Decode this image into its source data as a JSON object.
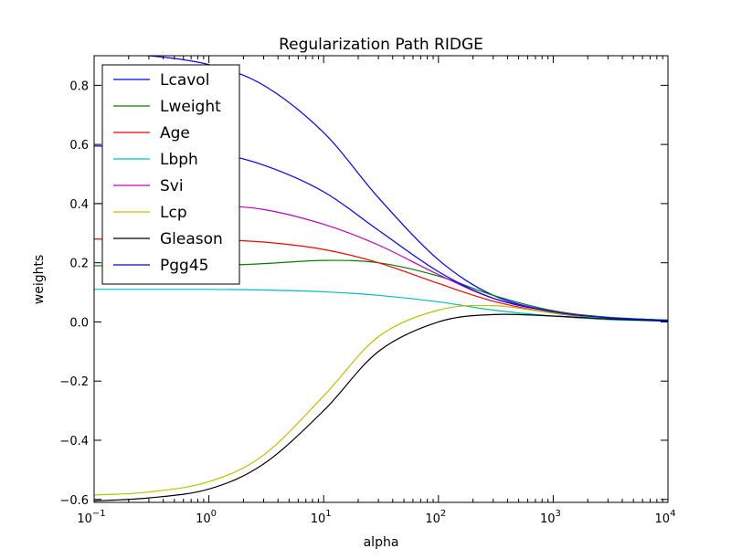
{
  "chart_data": {
    "type": "line",
    "title": "Regularization Path RIDGE",
    "xlabel": "alpha",
    "ylabel": "weights",
    "xscale": "log",
    "xlim": [
      0.1,
      10000
    ],
    "ylim": [
      -0.61,
      0.9
    ],
    "grid": false,
    "legend_position": "top-left",
    "x": [
      0.1,
      0.3,
      1,
      3,
      10,
      30,
      100,
      300,
      1000,
      3000,
      10000
    ],
    "x_tick_labels": [
      "10^-1",
      "10^0",
      "10^1",
      "10^2",
      "10^3",
      "10^4"
    ],
    "y_ticks": [
      0.8,
      0.6,
      0.4,
      0.2,
      0.0,
      -0.2,
      -0.4,
      -0.6
    ],
    "y_tick_labels": [
      "0.8",
      "0.6",
      "0.4",
      "0.2",
      "0.0",
      "−0.2",
      "−0.4",
      "−0.6"
    ],
    "series": [
      {
        "name": "Lcavol",
        "color": "#0000ff",
        "values": [
          0.905,
          0.9,
          0.87,
          0.8,
          0.64,
          0.42,
          0.21,
          0.09,
          0.035,
          0.015,
          0.006
        ]
      },
      {
        "name": "Lweight",
        "color": "#008000",
        "values": [
          0.19,
          0.19,
          0.19,
          0.197,
          0.208,
          0.2,
          0.155,
          0.09,
          0.038,
          0.016,
          0.006
        ]
      },
      {
        "name": "Age",
        "color": "#ff0000",
        "values": [
          0.28,
          0.28,
          0.278,
          0.27,
          0.245,
          0.2,
          0.13,
          0.07,
          0.03,
          0.012,
          0.005
        ]
      },
      {
        "name": "Lbph",
        "color": "#00bfbf",
        "values": [
          0.11,
          0.11,
          0.11,
          0.108,
          0.102,
          0.09,
          0.068,
          0.04,
          0.02,
          0.008,
          0.003
        ]
      },
      {
        "name": "Svi",
        "color": "#bf00bf",
        "values": [
          0.4,
          0.4,
          0.395,
          0.38,
          0.33,
          0.26,
          0.16,
          0.08,
          0.035,
          0.014,
          0.005
        ]
      },
      {
        "name": "Lcp",
        "color": "#bfbf00",
        "values": [
          -0.585,
          -0.575,
          -0.54,
          -0.45,
          -0.25,
          -0.05,
          0.04,
          0.055,
          0.03,
          0.012,
          0.004
        ]
      },
      {
        "name": "Gleason",
        "color": "#000000",
        "values": [
          -0.605,
          -0.595,
          -0.565,
          -0.48,
          -0.3,
          -0.1,
          0.0,
          0.025,
          0.02,
          0.01,
          0.003
        ]
      },
      {
        "name": "Pgg45",
        "color": "#0000ff",
        "values": [
          0.595,
          0.59,
          0.575,
          0.53,
          0.44,
          0.31,
          0.17,
          0.08,
          0.034,
          0.014,
          0.005
        ]
      }
    ]
  }
}
